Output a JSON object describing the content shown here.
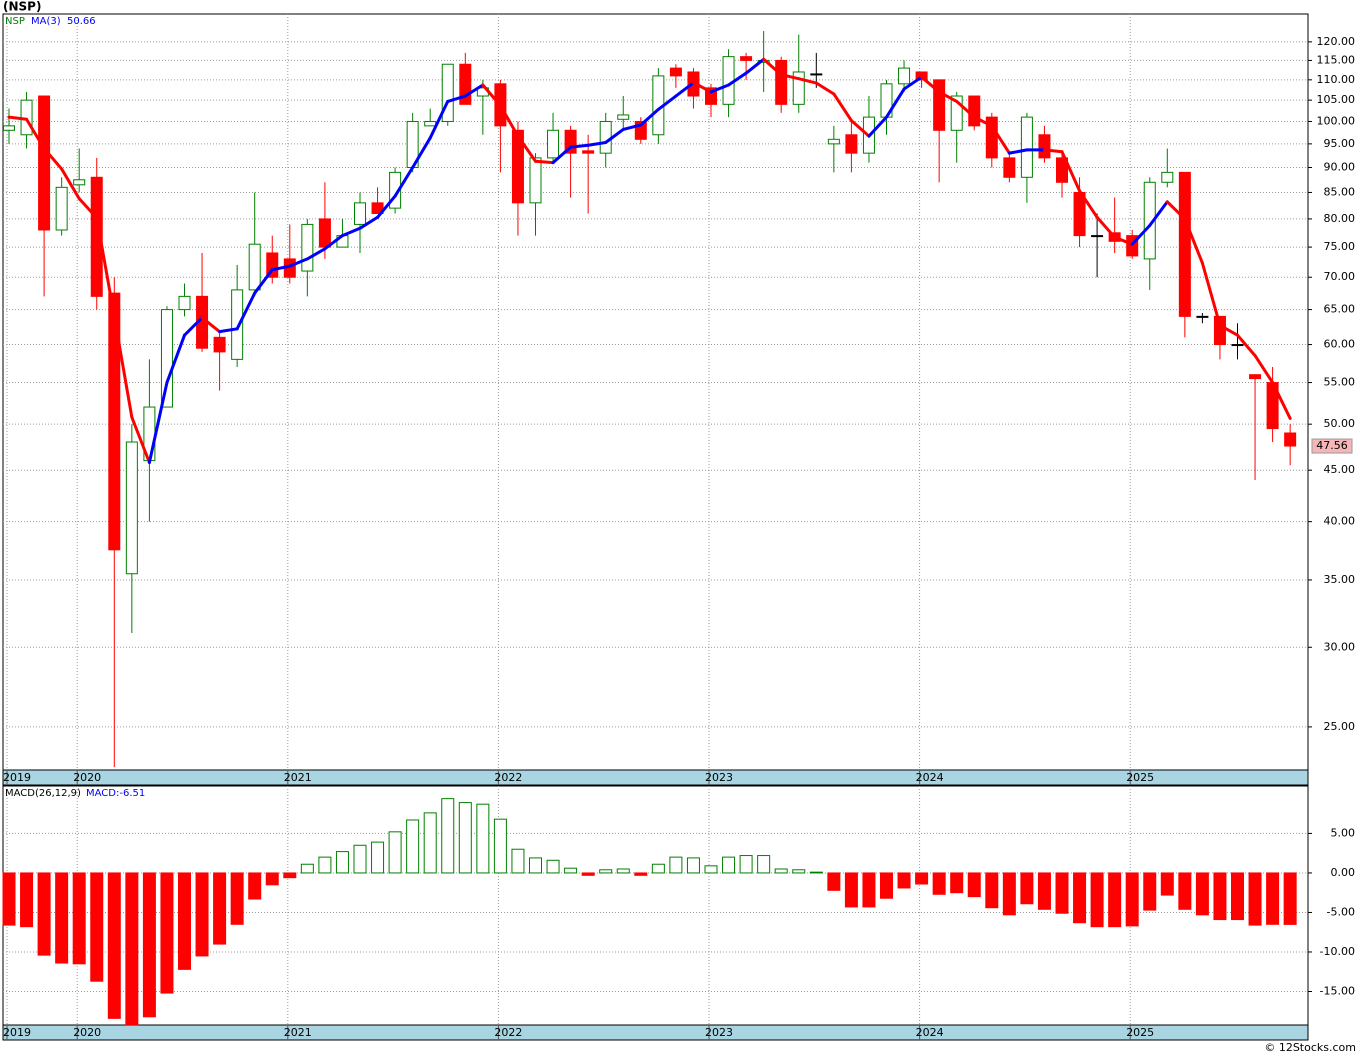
{
  "chart_data": [
    {
      "type": "candlestick",
      "title": "(NSP)",
      "symbol": "NSP",
      "categories": [
        "2019",
        null,
        null,
        null,
        "2020",
        null,
        null,
        null,
        null,
        null,
        null,
        null,
        null,
        null,
        null,
        null,
        "2021",
        null,
        null,
        null,
        null,
        null,
        null,
        null,
        null,
        null,
        null,
        null,
        "2022",
        null,
        null,
        null,
        null,
        null,
        null,
        null,
        null,
        null,
        null,
        null,
        "2023",
        null,
        null,
        null,
        null,
        null,
        null,
        null,
        null,
        null,
        null,
        null,
        "2024",
        null,
        null,
        null,
        null,
        null,
        null,
        null,
        null,
        null,
        null,
        null,
        "2025",
        null,
        null,
        null,
        null,
        null,
        null,
        null,
        null,
        null
      ],
      "open": [
        98,
        97,
        106,
        78,
        86.5,
        88,
        67.5,
        35.5,
        46,
        52,
        65,
        67,
        61,
        58,
        68,
        74,
        73,
        71,
        80,
        75,
        79,
        83,
        82,
        90,
        99,
        100,
        114,
        106,
        109,
        98,
        83,
        92,
        98,
        93.5,
        93,
        100.5,
        100,
        97,
        113,
        112,
        108,
        104,
        116,
        114.5,
        115,
        104,
        111.5,
        95,
        97,
        93,
        101,
        109,
        112,
        110,
        98,
        106,
        101,
        92,
        88,
        97,
        92,
        85,
        77,
        77.5,
        77,
        73,
        87,
        89,
        64,
        64,
        60,
        56,
        55,
        49
      ],
      "high": [
        103,
        107,
        106,
        88,
        94,
        92,
        70,
        50,
        58,
        65.5,
        69,
        74,
        62,
        72,
        85,
        77,
        79,
        80,
        87,
        80,
        85,
        86,
        90,
        102,
        103,
        114,
        117,
        110,
        110,
        100,
        93,
        102,
        99,
        97,
        102,
        106,
        101,
        113,
        114,
        113,
        109,
        118,
        117,
        123,
        116,
        122,
        117,
        99,
        100,
        106,
        110,
        115,
        112,
        110,
        107,
        106,
        102,
        93,
        102,
        99,
        93,
        88,
        81,
        84,
        78,
        88,
        94,
        89,
        64.5,
        64,
        63,
        56,
        57,
        50
      ],
      "low": [
        95,
        94,
        67,
        77,
        85,
        65,
        22.8,
        31,
        40,
        52,
        64,
        59,
        54,
        57,
        67,
        69,
        69,
        67,
        73,
        75,
        74,
        81,
        81,
        89,
        99,
        99,
        104,
        97,
        89,
        77,
        77,
        91,
        84,
        81,
        90,
        98,
        95,
        95,
        108,
        103,
        101,
        101,
        110,
        107,
        102,
        102,
        108,
        89,
        89,
        91,
        97,
        107,
        108,
        87,
        91,
        98,
        90,
        87,
        83,
        91,
        84,
        75,
        70,
        74,
        73,
        68,
        86,
        61,
        63,
        58,
        58,
        44,
        48,
        45.5
      ],
      "close": [
        99,
        105,
        78,
        86,
        87.5,
        67,
        37.5,
        48,
        52,
        65,
        67,
        59.5,
        59,
        68,
        75.5,
        70,
        70,
        79,
        75,
        77,
        83,
        81,
        89,
        100,
        100,
        114,
        104,
        108,
        99,
        83,
        92,
        98,
        93,
        93,
        100,
        101.5,
        96,
        111,
        111,
        106,
        104,
        116,
        115,
        115,
        104,
        112,
        111.5,
        96,
        93,
        101,
        109,
        113,
        110,
        98,
        106,
        99,
        92,
        88,
        101,
        92,
        87,
        77,
        77,
        76,
        73.5,
        87,
        89,
        64,
        64,
        60,
        60,
        55.5,
        49.5,
        47.56
      ],
      "up_color": "#008000",
      "down_color": "#ff0000",
      "ma": {
        "name": "MA(3)",
        "last": 50.66,
        "up_color": "#0000ff",
        "down_color": "#ff0000",
        "values": [
          101,
          100.5,
          94,
          89.7,
          83.8,
          80.2,
          64,
          50.8,
          45.8,
          55,
          61.3,
          63.8,
          61.8,
          62.2,
          67.5,
          71.2,
          71.8,
          73,
          74.7,
          77,
          78.3,
          80.3,
          84.3,
          90,
          96.3,
          104.7,
          106,
          108.7,
          103.7,
          96.7,
          91.3,
          91,
          94.3,
          94.7,
          95.3,
          98.2,
          99.2,
          102.8,
          106,
          109.3,
          107,
          108.7,
          111.7,
          115.3,
          111.3,
          110.3,
          109.2,
          106.5,
          100.2,
          96.7,
          101,
          107.7,
          110.7,
          107,
          104.7,
          101,
          99,
          93,
          93.7,
          93.7,
          93.3,
          85.3,
          80.3,
          76.7,
          75.5,
          78.8,
          83.2,
          80,
          72.3,
          62.7,
          61.3,
          58.5,
          55,
          50.66
        ]
      },
      "last_price": 47.56,
      "log_scale": true,
      "grid": true,
      "ylim": [
        22.65,
        127.9
      ],
      "yticks": [
        {
          "value": 25,
          "label": "25.00"
        },
        {
          "value": 30,
          "label": "30.00"
        },
        {
          "value": 35,
          "label": "35.00"
        },
        {
          "value": 40,
          "label": "40.00"
        },
        {
          "value": 45,
          "label": "45.00"
        },
        {
          "value": 50,
          "label": "50.00"
        },
        {
          "value": 55,
          "label": "55.00"
        },
        {
          "value": 60,
          "label": "60.00"
        },
        {
          "value": 65,
          "label": "65.00"
        },
        {
          "value": 70,
          "label": "70.00"
        },
        {
          "value": 75,
          "label": "75.00"
        },
        {
          "value": 80,
          "label": "80.00"
        },
        {
          "value": 85,
          "label": "85.00"
        },
        {
          "value": 90,
          "label": "90.00"
        },
        {
          "value": 95,
          "label": "95.00"
        },
        {
          "value": 100,
          "label": "100.00"
        },
        {
          "value": 105,
          "label": "105.00"
        },
        {
          "value": 110,
          "label": "110.00"
        },
        {
          "value": 115,
          "label": "115.00"
        },
        {
          "value": 120,
          "label": "120.00"
        }
      ]
    },
    {
      "type": "bar",
      "title": "MACD(26,12,9)",
      "value_label": "MACD:-6.51",
      "categories": [
        "2019",
        null,
        null,
        null,
        "2020",
        null,
        null,
        null,
        null,
        null,
        null,
        null,
        null,
        null,
        null,
        null,
        "2021",
        null,
        null,
        null,
        null,
        null,
        null,
        null,
        null,
        null,
        null,
        null,
        "2022",
        null,
        null,
        null,
        null,
        null,
        null,
        null,
        null,
        null,
        null,
        null,
        "2023",
        null,
        null,
        null,
        null,
        null,
        null,
        null,
        null,
        null,
        null,
        null,
        "2024",
        null,
        null,
        null,
        null,
        null,
        null,
        null,
        null,
        null,
        null,
        null,
        "2025",
        null,
        null,
        null,
        null,
        null,
        null,
        null,
        null,
        null
      ],
      "values": [
        -6.6,
        -6.8,
        -10.4,
        -11.4,
        -11.5,
        -13.7,
        -18.4,
        -19.2,
        -18.2,
        -15.2,
        -12.2,
        -10.5,
        -9.0,
        -6.5,
        -3.3,
        -1.5,
        -0.6,
        1.1,
        2.0,
        2.7,
        3.5,
        3.9,
        5.2,
        6.7,
        7.6,
        9.4,
        8.9,
        8.7,
        6.8,
        3.0,
        1.9,
        1.6,
        0.6,
        -0.3,
        0.4,
        0.5,
        -0.3,
        1.1,
        2.0,
        1.9,
        0.9,
        2.0,
        2.2,
        2.2,
        0.5,
        0.4,
        0.1,
        -2.2,
        -4.3,
        -4.3,
        -3.2,
        -1.9,
        -1.4,
        -2.7,
        -2.5,
        -3.0,
        -4.4,
        -5.3,
        -3.9,
        -4.6,
        -5.1,
        -6.3,
        -6.8,
        -6.8,
        -6.7,
        -4.7,
        -2.8,
        -4.6,
        -5.3,
        -5.9,
        -5.9,
        -6.6,
        -6.5,
        -6.51
      ],
      "pos_color": "#008000",
      "neg_color": "#ff0000",
      "grid": true,
      "ylim": [
        -19.24,
        11.0
      ],
      "yticks": [
        {
          "value": 5,
          "label": "5.00"
        },
        {
          "value": 0,
          "label": "0.00"
        },
        {
          "value": -5,
          "label": "-5.00"
        },
        {
          "value": -10,
          "label": "-10.00"
        },
        {
          "value": -15,
          "label": "-15.00"
        }
      ]
    }
  ],
  "footer": "© 12Stocks.com"
}
